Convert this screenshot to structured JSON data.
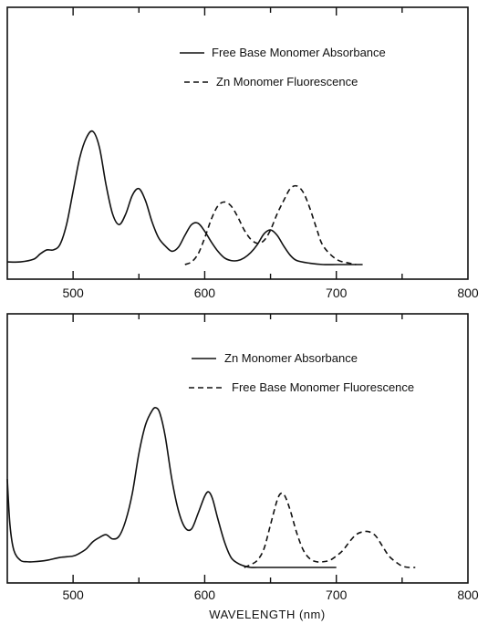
{
  "chart_data": [
    {
      "type": "line",
      "title": "",
      "xlabel": "",
      "ylabel": "",
      "xlim": [
        450,
        800
      ],
      "x_ticks": [
        500,
        600,
        700,
        800
      ],
      "x_tick_labels": [
        "500",
        "600",
        "700",
        "800"
      ],
      "y_ticks": 0,
      "grid": false,
      "legend_position": "top-right",
      "series": [
        {
          "name": "Free Base Monomer Absorbance",
          "style": "solid",
          "x": [
            450,
            460,
            470,
            475,
            480,
            485,
            490,
            495,
            500,
            505,
            510,
            515,
            520,
            525,
            530,
            535,
            540,
            545,
            550,
            555,
            560,
            565,
            570,
            575,
            580,
            585,
            590,
            595,
            600,
            605,
            610,
            615,
            620,
            625,
            630,
            635,
            640,
            645,
            650,
            655,
            660,
            665,
            670,
            680,
            690,
            700,
            710,
            720
          ],
          "y": [
            0.02,
            0.02,
            0.04,
            0.08,
            0.11,
            0.11,
            0.15,
            0.3,
            0.55,
            0.8,
            0.95,
            1.0,
            0.88,
            0.6,
            0.38,
            0.3,
            0.38,
            0.52,
            0.57,
            0.48,
            0.32,
            0.2,
            0.14,
            0.1,
            0.13,
            0.22,
            0.3,
            0.31,
            0.25,
            0.17,
            0.1,
            0.05,
            0.03,
            0.03,
            0.05,
            0.09,
            0.15,
            0.23,
            0.26,
            0.22,
            0.14,
            0.07,
            0.03,
            0.01,
            0.0,
            0.0,
            0.0,
            0.0
          ]
        },
        {
          "name": "Zn Monomer Fluorescence",
          "style": "dashed",
          "x": [
            585,
            590,
            595,
            600,
            605,
            610,
            615,
            620,
            625,
            630,
            635,
            640,
            645,
            650,
            655,
            660,
            665,
            670,
            675,
            680,
            685,
            690,
            700,
            710,
            715
          ],
          "y": [
            0.0,
            0.02,
            0.08,
            0.2,
            0.34,
            0.44,
            0.47,
            0.44,
            0.36,
            0.26,
            0.19,
            0.16,
            0.18,
            0.26,
            0.38,
            0.48,
            0.57,
            0.59,
            0.54,
            0.42,
            0.27,
            0.14,
            0.04,
            0.01,
            0.0
          ]
        }
      ]
    },
    {
      "type": "line",
      "title": "",
      "xlabel": "WAVELENGTH (nm)",
      "ylabel": "",
      "xlim": [
        450,
        800
      ],
      "x_ticks": [
        500,
        600,
        700,
        800
      ],
      "x_tick_labels": [
        "500",
        "600",
        "700",
        "800"
      ],
      "y_ticks": 0,
      "grid": false,
      "legend_position": "top-right",
      "series": [
        {
          "name": "Zn Monomer Absorbance",
          "style": "solid",
          "x": [
            450,
            452,
            455,
            460,
            465,
            470,
            480,
            490,
            500,
            505,
            510,
            515,
            520,
            525,
            530,
            535,
            540,
            545,
            550,
            555,
            560,
            563,
            566,
            570,
            575,
            580,
            585,
            590,
            595,
            600,
            603,
            606,
            610,
            615,
            620,
            625,
            630,
            635,
            640,
            650,
            660,
            680,
            700
          ],
          "y": [
            0.62,
            0.3,
            0.12,
            0.05,
            0.04,
            0.04,
            0.05,
            0.07,
            0.08,
            0.1,
            0.13,
            0.18,
            0.21,
            0.23,
            0.2,
            0.22,
            0.33,
            0.52,
            0.8,
            1.0,
            1.1,
            1.12,
            1.08,
            0.92,
            0.62,
            0.4,
            0.28,
            0.27,
            0.38,
            0.5,
            0.53,
            0.48,
            0.34,
            0.18,
            0.07,
            0.03,
            0.01,
            0.0,
            0.0,
            0.0,
            0.0,
            0.0,
            0.0
          ]
        },
        {
          "name": "Free Base Monomer Fluorescence",
          "style": "dashed",
          "x": [
            630,
            635,
            640,
            645,
            650,
            655,
            658,
            661,
            665,
            670,
            675,
            680,
            685,
            690,
            695,
            700,
            705,
            710,
            715,
            720,
            725,
            730,
            735,
            740,
            745,
            750,
            755,
            760
          ],
          "y": [
            0.0,
            0.02,
            0.05,
            0.13,
            0.3,
            0.47,
            0.52,
            0.5,
            0.4,
            0.24,
            0.12,
            0.06,
            0.04,
            0.04,
            0.05,
            0.08,
            0.12,
            0.18,
            0.23,
            0.25,
            0.25,
            0.22,
            0.15,
            0.08,
            0.04,
            0.01,
            0.0,
            0.0
          ]
        }
      ]
    }
  ]
}
